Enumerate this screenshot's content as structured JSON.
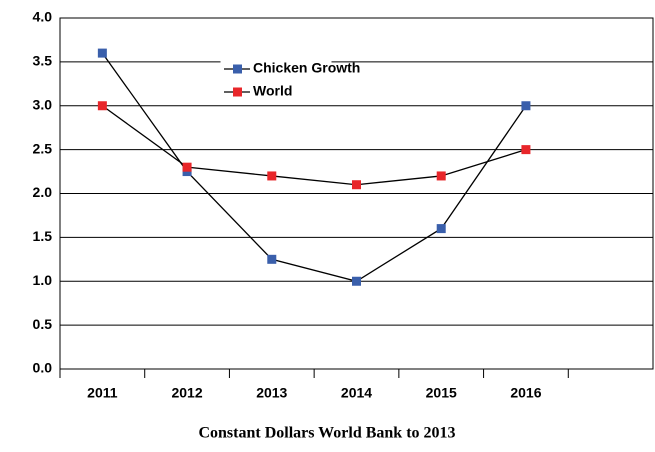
{
  "chart_data": {
    "type": "line",
    "xlabel": "Constant Dollars World Bank to 2013",
    "categories": [
      "2011",
      "2012",
      "2013",
      "2014",
      "2015",
      "2016",
      null
    ],
    "series": [
      {
        "name": "Chicken Growth",
        "color": "#3a5fab",
        "values": [
          3.6,
          2.25,
          1.25,
          1.0,
          1.6,
          3.0,
          null
        ]
      },
      {
        "name": "World",
        "color": "#e8262a",
        "values": [
          3.0,
          2.3,
          2.2,
          2.1,
          2.2,
          2.5,
          null
        ]
      }
    ],
    "ylim": [
      0,
      4
    ],
    "yticks": [
      {
        "value": 0,
        "label": "0.0"
      },
      {
        "value": 0.5,
        "label": "0.5"
      },
      {
        "value": 1,
        "label": "1.0"
      },
      {
        "value": 1.5,
        "label": "1.5"
      },
      {
        "value": 2,
        "label": "2.0"
      },
      {
        "value": 2.5,
        "label": "2.5"
      },
      {
        "value": 3,
        "label": "3.0"
      },
      {
        "value": 3.5,
        "label": "3.5"
      },
      {
        "value": 4,
        "label": "4.0"
      }
    ],
    "grid": true
  }
}
